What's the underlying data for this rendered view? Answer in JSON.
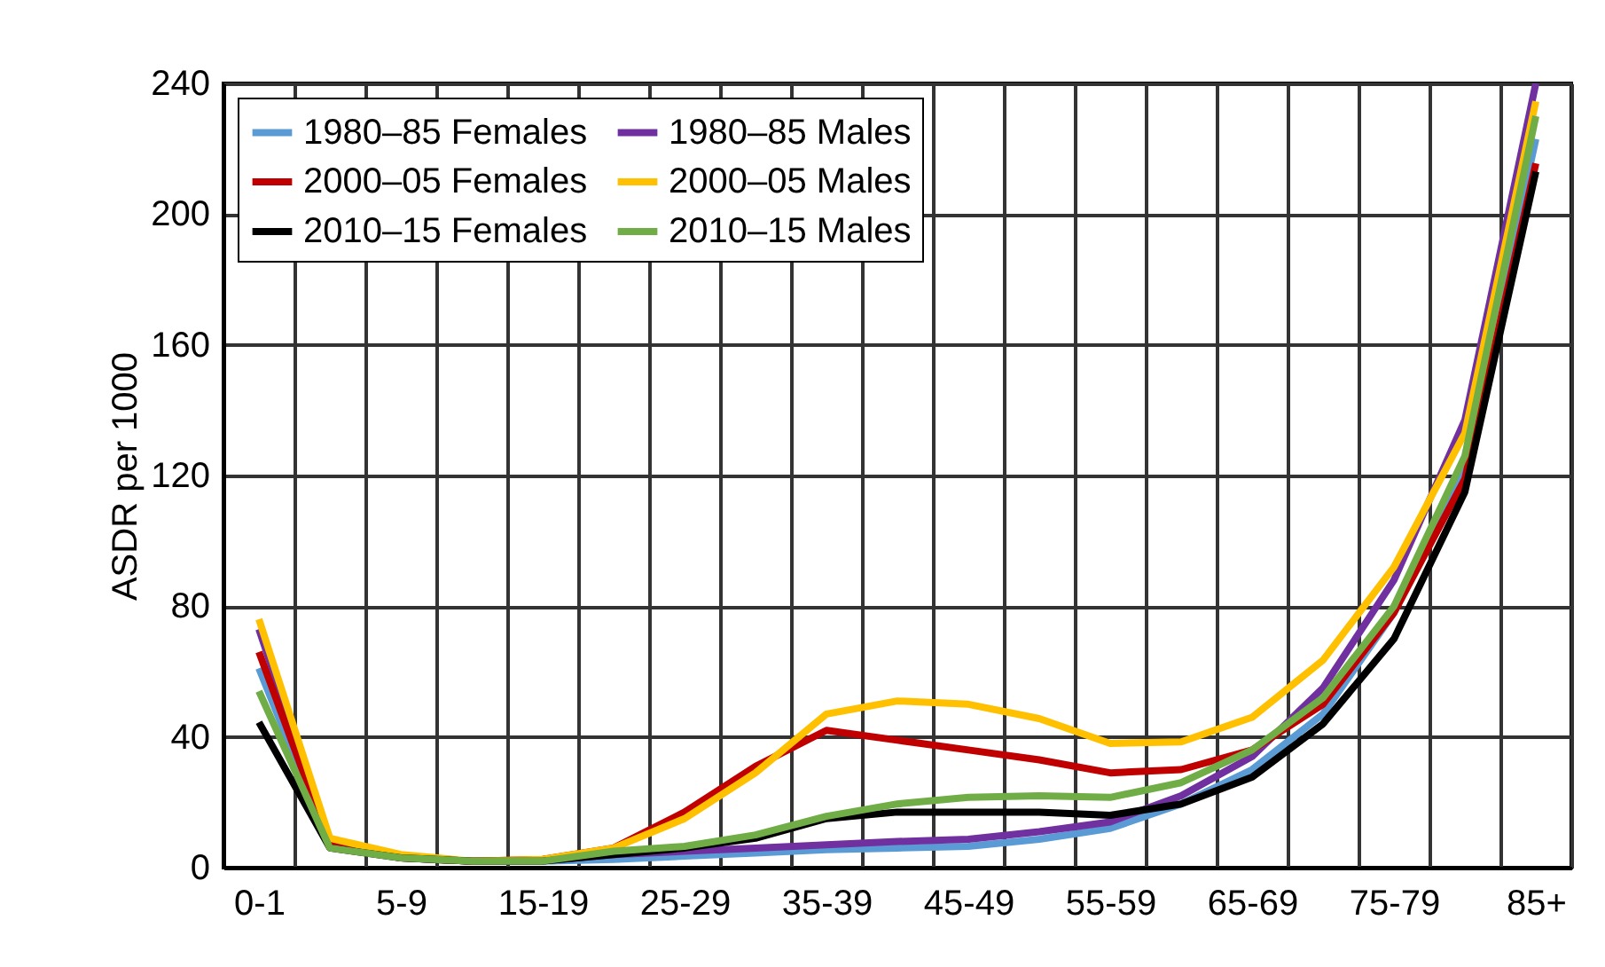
{
  "chart_data": {
    "type": "line",
    "ylabel": "ASDR per 1000",
    "categories": [
      "0-1",
      null,
      "5-9",
      null,
      "15-19",
      null,
      "25-29",
      null,
      "35-39",
      null,
      "45-49",
      null,
      "55-59",
      null,
      "65-69",
      null,
      "75-79",
      null,
      "85+"
    ],
    "series": [
      {
        "name": "1980–85 Females",
        "color": "#5b9bd5",
        "values": [
          61,
          7,
          3,
          2,
          2,
          2.5,
          3.5,
          4.5,
          5.5,
          6,
          6.5,
          8.7,
          12,
          19.5,
          30,
          47,
          78,
          123,
          223
        ]
      },
      {
        "name": "1980–85 Males",
        "color": "#7030a0",
        "values": [
          73,
          8,
          3,
          2,
          2,
          4,
          5,
          6,
          7,
          8,
          8.7,
          11,
          14,
          22,
          34,
          55,
          88,
          137,
          240
        ]
      },
      {
        "name": "2000–05 Females",
        "color": "#c00000",
        "values": [
          66,
          7,
          3,
          2,
          2.5,
          6,
          17,
          31,
          42,
          39,
          36,
          33,
          29,
          30,
          36,
          50,
          78,
          119,
          215.5
        ]
      },
      {
        "name": "2000–05 Males",
        "color": "#ffc000",
        "values": [
          76,
          9,
          4,
          2,
          2.5,
          6,
          15,
          29,
          47,
          51,
          50,
          45.6,
          38,
          38.5,
          46,
          63.5,
          92,
          133,
          234.5
        ]
      },
      {
        "name": "2010–15 Females",
        "color": "#000000",
        "values": [
          44.5,
          6,
          3,
          2,
          2,
          4,
          6,
          9,
          15,
          17,
          17,
          17,
          16,
          19.5,
          27.7,
          44,
          70,
          115,
          213
        ]
      },
      {
        "name": "2010–15 Males",
        "color": "#70ad47",
        "values": [
          54,
          6,
          3,
          2,
          2,
          5,
          6.5,
          10,
          15.7,
          19.5,
          21.5,
          22,
          21.5,
          26,
          36,
          52,
          80,
          126,
          230
        ]
      }
    ],
    "ylim": [
      0,
      240
    ],
    "yticks": [
      0,
      40,
      80,
      120,
      160,
      200,
      240
    ],
    "grid": true,
    "legend": "top left",
    "marker": "none",
    "line_style": "solid"
  }
}
